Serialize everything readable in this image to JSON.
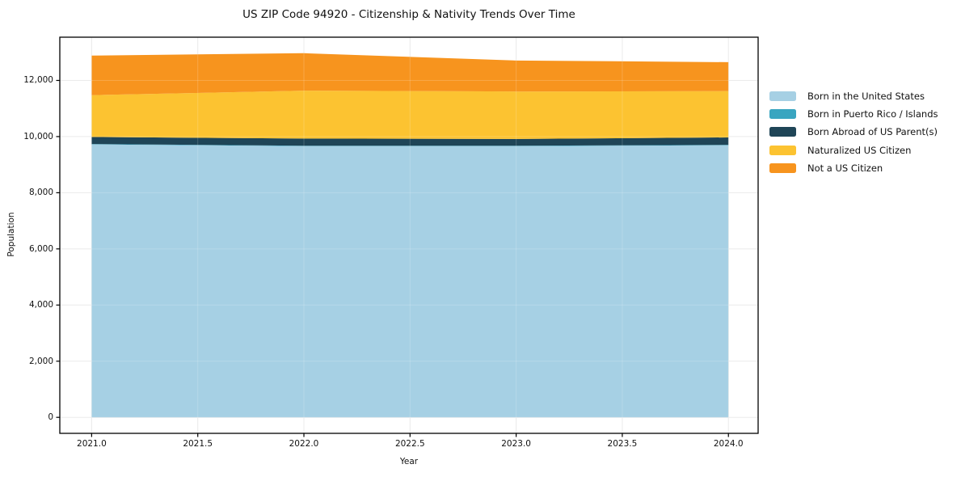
{
  "figure": {
    "background": "#ffffff",
    "frame_color": "#000000",
    "grid_color": "#e7e7e7"
  },
  "chart_data": {
    "type": "area",
    "stacked": true,
    "title": "US ZIP Code 94920 - Citizenship & Nativity Trends Over Time",
    "xlabel": "Year",
    "ylabel": "Population",
    "x": [
      2021,
      2022,
      2023,
      2024
    ],
    "series": [
      {
        "name": "Born in the United States",
        "color": "#a6d0e4",
        "values": [
          9720,
          9660,
          9660,
          9690
        ]
      },
      {
        "name": "Born in Puerto Rico / Islands",
        "color": "#39a5c0",
        "values": [
          15,
          15,
          15,
          15
        ]
      },
      {
        "name": "Born Abroad of US Parent(s)",
        "color": "#1f4557",
        "values": [
          250,
          255,
          240,
          265
        ]
      },
      {
        "name": "Naturalized US Citizen",
        "color": "#fcc331",
        "values": [
          1490,
          1705,
          1690,
          1650
        ]
      },
      {
        "name": "Not a US Citizen",
        "color": "#f7941e",
        "values": [
          1410,
          1335,
          1105,
          1030
        ]
      }
    ],
    "totals": [
      12885,
      12970,
      12710,
      12650
    ],
    "x_ticks": [
      2021.0,
      2021.5,
      2022.0,
      2022.5,
      2023.0,
      2023.5,
      2024.0
    ],
    "x_tick_labels": [
      "2021.0",
      "2021.5",
      "2022.0",
      "2022.5",
      "2023.0",
      "2023.5",
      "2024.0"
    ],
    "y_ticks": [
      0,
      2000,
      4000,
      6000,
      8000,
      10000,
      12000
    ],
    "y_tick_labels": [
      "0",
      "2,000",
      "4,000",
      "6,000",
      "8,000",
      "10,000",
      "12,000"
    ],
    "xlim": [
      2020.85,
      2024.14
    ],
    "ylim": [
      -570,
      13540
    ],
    "grid": true,
    "legend_position": "right-outside"
  }
}
